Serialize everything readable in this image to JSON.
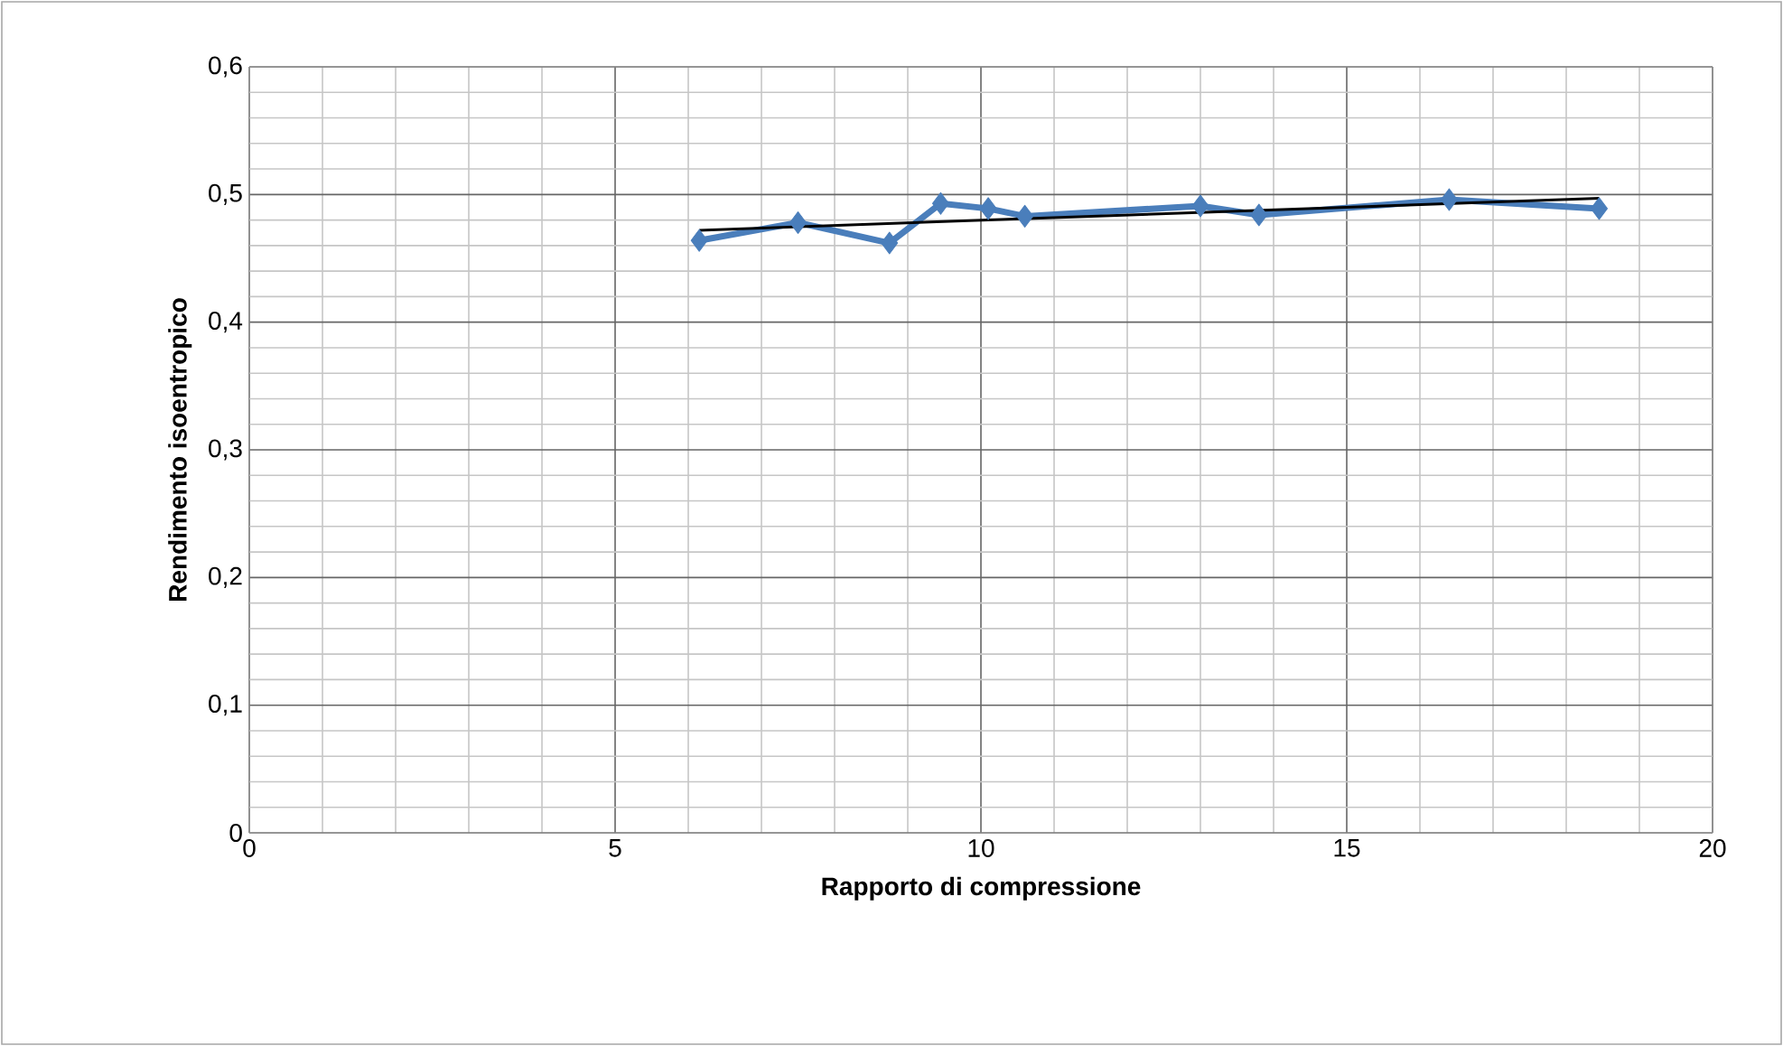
{
  "chart_data": {
    "type": "line",
    "xlabel": "Rapporto di compressione",
    "ylabel": "Rendimento isoentropico",
    "x": [
      6.15,
      7.5,
      8.75,
      9.45,
      10.1,
      10.6,
      13.0,
      13.8,
      16.4,
      18.45
    ],
    "series": [
      {
        "color": "#4a7ebb",
        "values": [
          0.464,
          0.478,
          0.462,
          0.493,
          0.489,
          0.483,
          0.491,
          0.484,
          0.496,
          0.489
        ]
      },
      {
        "type": "line",
        "marker": "none",
        "color": "#000000",
        "x": [
          6.15,
          18.45
        ],
        "values": [
          0.472,
          0.497
        ]
      }
    ],
    "marker": "diamond",
    "line_style": "solid",
    "grid": true,
    "xlim": [
      0,
      20
    ],
    "ylim": [
      0,
      0.6
    ],
    "xticks": [
      0,
      5,
      10,
      15,
      20
    ],
    "yticks": [
      {
        "value": 0,
        "label": "0"
      },
      {
        "value": 0.1,
        "label": "0,1"
      },
      {
        "value": 0.2,
        "label": "0,2"
      },
      {
        "value": 0.3,
        "label": "0,3"
      },
      {
        "value": 0.4,
        "label": "0,4"
      },
      {
        "value": 0.5,
        "label": "0,5"
      },
      {
        "value": 0.6,
        "label": "0,6"
      }
    ]
  }
}
